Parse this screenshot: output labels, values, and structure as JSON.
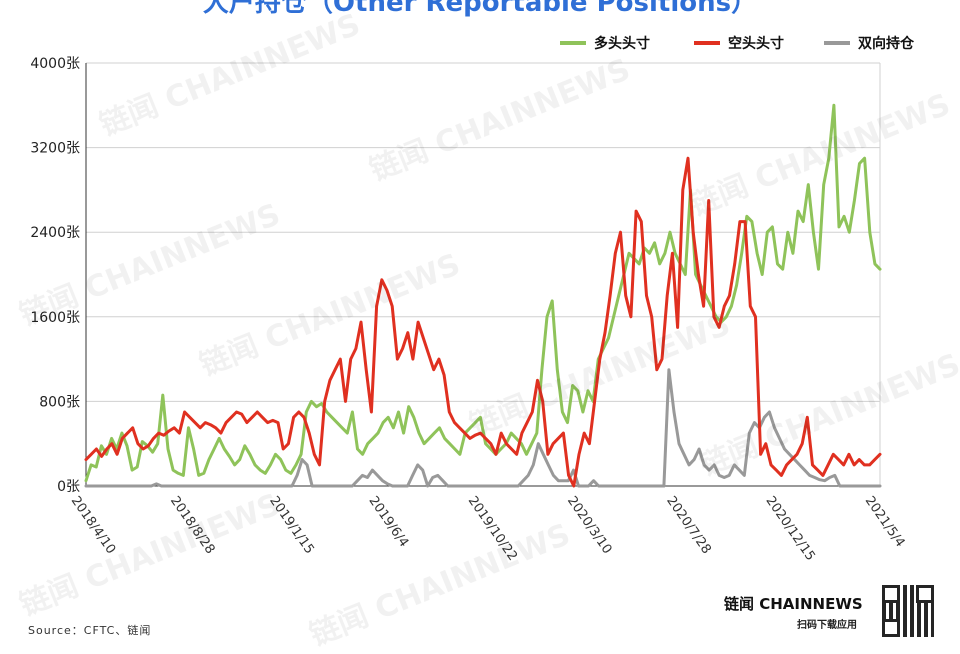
{
  "title": "大户持仓（Other Reportable Positions）",
  "source": "Source：CFTC、链闻",
  "brand": "链闻 CHAINNEWS",
  "brand_sub": "扫码下载应用",
  "watermark": "链闻 CHAINNEWS",
  "chart_data": {
    "type": "line",
    "title": "大户持仓（Other Reportable Positions）",
    "xlabel": "",
    "ylabel": "",
    "ylim": [
      0,
      4000
    ],
    "yticks": [
      "0张",
      "800张",
      "1600张",
      "2400张",
      "3200张",
      "4000张"
    ],
    "xticks": [
      "2018/4/10",
      "2018/8/28",
      "2019/1/15",
      "2019/6/4",
      "2019/10/22",
      "2020/3/10",
      "2020/7/28",
      "2020/12/15",
      "2021/5/4"
    ],
    "grid": true,
    "legend_position": "top-right",
    "series": [
      {
        "name": "多头头寸",
        "color": "#8fc35a",
        "values": [
          50,
          200,
          180,
          380,
          300,
          450,
          350,
          500,
          380,
          150,
          180,
          420,
          380,
          320,
          400,
          860,
          350,
          150,
          120,
          100,
          550,
          350,
          100,
          120,
          250,
          350,
          450,
          350,
          280,
          200,
          250,
          380,
          300,
          200,
          150,
          120,
          200,
          300,
          250,
          150,
          120,
          200,
          300,
          700,
          800,
          750,
          780,
          700,
          650,
          600,
          550,
          500,
          700,
          350,
          300,
          400,
          450,
          500,
          600,
          650,
          550,
          700,
          500,
          750,
          650,
          500,
          400,
          450,
          500,
          550,
          450,
          400,
          350,
          300,
          500,
          550,
          600,
          650,
          400,
          350,
          300,
          350,
          400,
          500,
          450,
          400,
          300,
          400,
          500,
          1100,
          1600,
          1750,
          1100,
          700,
          600,
          950,
          900,
          700,
          900,
          800,
          1200,
          1300,
          1400,
          1600,
          1800,
          2000,
          2200,
          2150,
          2100,
          2250,
          2200,
          2300,
          2100,
          2200,
          2400,
          2200,
          2100,
          2000,
          2800,
          2000,
          1900,
          1800,
          1700,
          1600,
          1550,
          1600,
          1700,
          1900,
          2200,
          2550,
          2500,
          2200,
          2000,
          2400,
          2450,
          2100,
          2050,
          2400,
          2200,
          2600,
          2500,
          2850,
          2400,
          2050,
          2850,
          3100,
          3600,
          2450,
          2550,
          2400,
          2700,
          3050,
          3100,
          2400,
          2100,
          2050
        ]
      },
      {
        "name": "空头头寸",
        "color": "#e03020",
        "values": [
          250,
          300,
          350,
          280,
          350,
          400,
          300,
          450,
          500,
          550,
          400,
          350,
          380,
          450,
          500,
          480,
          520,
          550,
          500,
          700,
          650,
          600,
          550,
          600,
          580,
          550,
          500,
          600,
          650,
          700,
          680,
          600,
          650,
          700,
          650,
          600,
          620,
          600,
          350,
          400,
          650,
          700,
          650,
          500,
          300,
          200,
          800,
          1000,
          1100,
          1200,
          800,
          1200,
          1300,
          1550,
          1100,
          700,
          1700,
          1950,
          1850,
          1700,
          1200,
          1300,
          1450,
          1200,
          1550,
          1400,
          1250,
          1100,
          1200,
          1050,
          700,
          600,
          550,
          500,
          450,
          480,
          500,
          450,
          400,
          300,
          500,
          400,
          350,
          300,
          500,
          600,
          700,
          1000,
          800,
          300,
          400,
          450,
          500,
          100,
          0,
          300,
          500,
          400,
          800,
          1200,
          1450,
          1800,
          2200,
          2400,
          1800,
          1600,
          2600,
          2500,
          1800,
          1600,
          1100,
          1200,
          1800,
          2200,
          1500,
          2800,
          3100,
          2400,
          2000,
          1700,
          2700,
          1600,
          1500,
          1700,
          1800,
          2100,
          2500,
          2500,
          1700,
          1600,
          300,
          400,
          200,
          150,
          100,
          200,
          250,
          300,
          400,
          650,
          200,
          150,
          100,
          200,
          300,
          250,
          200,
          300,
          200,
          250,
          200,
          200,
          250,
          300
        ]
      },
      {
        "name": "双向持仓",
        "color": "#999999",
        "values": [
          0,
          0,
          0,
          0,
          0,
          0,
          0,
          0,
          0,
          0,
          0,
          0,
          0,
          0,
          20,
          0,
          0,
          0,
          0,
          0,
          0,
          0,
          0,
          0,
          0,
          0,
          0,
          0,
          0,
          0,
          0,
          0,
          0,
          0,
          0,
          0,
          0,
          0,
          0,
          0,
          0,
          0,
          100,
          250,
          200,
          0,
          0,
          0,
          0,
          0,
          0,
          0,
          0,
          0,
          50,
          100,
          80,
          150,
          100,
          50,
          20,
          0,
          0,
          0,
          0,
          100,
          200,
          150,
          0,
          80,
          100,
          50,
          0,
          0,
          0,
          0,
          0,
          0,
          0,
          0,
          0,
          0,
          0,
          0,
          0,
          0,
          0,
          50,
          100,
          200,
          400,
          300,
          200,
          100,
          50,
          50,
          50,
          150,
          0,
          0,
          0,
          50,
          0,
          0,
          0,
          0,
          0,
          0,
          0,
          0,
          0,
          0,
          0,
          0,
          0,
          0,
          1100,
          700,
          400,
          300,
          200,
          250,
          350,
          200,
          150,
          200,
          100,
          80,
          100,
          200,
          150,
          100,
          500,
          600,
          550,
          650,
          700,
          550,
          450,
          350,
          300,
          250,
          200,
          150,
          100,
          80,
          60,
          50,
          80,
          100,
          0,
          0,
          0,
          0,
          0,
          0,
          0,
          0,
          0
        ]
      }
    ]
  }
}
